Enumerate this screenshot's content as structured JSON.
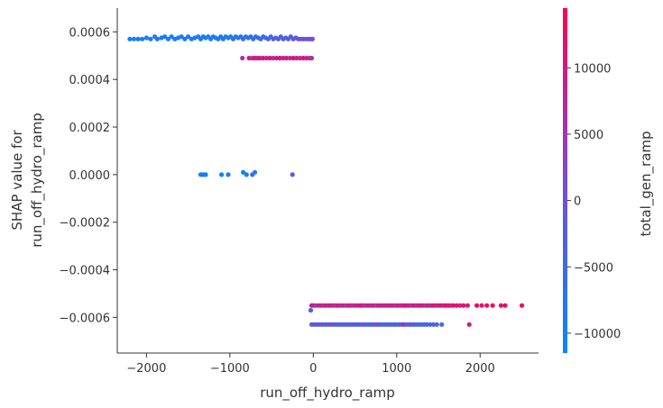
{
  "chart_data": {
    "type": "scatter",
    "xlabel": "run_off_hydro_ramp",
    "ylabel_lines": [
      "SHAP value for",
      "run_off_hydro_ramp"
    ],
    "xlim": [
      -2350,
      2700
    ],
    "ylim": [
      -0.00075,
      0.0007
    ],
    "x_ticks": [
      -2000,
      -1000,
      0,
      1000,
      2000
    ],
    "x_tick_labels": [
      "−2000",
      "−1000",
      "0",
      "1000",
      "2000"
    ],
    "y_ticks": [
      0.0006,
      0.0004,
      0.0002,
      0.0,
      -0.0002,
      -0.0004,
      -0.0006
    ],
    "y_tick_labels": [
      "0.0006",
      "0.0004",
      "0.0002",
      "0.0000",
      "−0.0002",
      "−0.0004",
      "−0.0006"
    ],
    "colorbar": {
      "label": "total_gen_ramp",
      "range": [
        -11500,
        14500
      ],
      "ticks": [
        10000,
        5000,
        0,
        -5000,
        -10000
      ],
      "tick_labels": [
        "10000",
        "5000",
        "0",
        "−5000",
        "−10000"
      ],
      "colors": [
        "#008afb",
        "#7b4bd1",
        "#ff0052"
      ]
    },
    "points": [
      [
        -2200,
        0.00057,
        -9500
      ],
      [
        -2150,
        0.00057,
        -10000
      ],
      [
        -2100,
        0.00057,
        -9000
      ],
      [
        -2050,
        0.00057,
        -9800
      ],
      [
        -2000,
        0.000575,
        -9200
      ],
      [
        -1950,
        0.00057,
        -9500
      ],
      [
        -1900,
        0.00058,
        -9000
      ],
      [
        -1870,
        0.00057,
        -8500
      ],
      [
        -1820,
        0.000575,
        -9700
      ],
      [
        -1780,
        0.00058,
        -8800
      ],
      [
        -1740,
        0.00057,
        -9200
      ],
      [
        -1700,
        0.00058,
        -9600
      ],
      [
        -1660,
        0.00057,
        -8000
      ],
      [
        -1620,
        0.000575,
        -9300
      ],
      [
        -1580,
        0.00058,
        -8700
      ],
      [
        -1540,
        0.00057,
        -9100
      ],
      [
        -1500,
        0.00058,
        -7500
      ],
      [
        -1460,
        0.00057,
        -9000
      ],
      [
        -1420,
        0.000575,
        -8600
      ],
      [
        -1380,
        0.00058,
        -9400
      ],
      [
        -1350,
        0.00057,
        -8200
      ],
      [
        -1320,
        0.00058,
        -9000
      ],
      [
        -1290,
        0.000575,
        -8800
      ],
      [
        -1260,
        0.00058,
        -9500
      ],
      [
        -1230,
        0.00057,
        -8400
      ],
      [
        -1200,
        0.00058,
        -7800
      ],
      [
        -1170,
        0.000575,
        -9100
      ],
      [
        -1140,
        0.00057,
        -8500
      ],
      [
        -1110,
        0.00058,
        -7000
      ],
      [
        -1080,
        0.00057,
        -8700
      ],
      [
        -1050,
        0.00058,
        -9200
      ],
      [
        -1020,
        0.000575,
        -6500
      ],
      [
        -990,
        0.00058,
        -8800
      ],
      [
        -960,
        0.00057,
        -6000
      ],
      [
        -930,
        0.00058,
        -8500
      ],
      [
        -900,
        0.000575,
        -5500
      ],
      [
        -870,
        0.00058,
        -7800
      ],
      [
        -840,
        0.00057,
        -5000
      ],
      [
        -810,
        0.00058,
        -8000
      ],
      [
        -780,
        0.000575,
        -4500
      ],
      [
        -750,
        0.00058,
        -7500
      ],
      [
        -720,
        0.00057,
        -4000
      ],
      [
        -690,
        0.00058,
        -7000
      ],
      [
        -660,
        0.000575,
        -3500
      ],
      [
        -630,
        0.00057,
        -6800
      ],
      [
        -600,
        0.00058,
        -3000
      ],
      [
        -570,
        0.000575,
        -6000
      ],
      [
        -540,
        0.00057,
        -2500
      ],
      [
        -510,
        0.00058,
        -5500
      ],
      [
        -480,
        0.00057,
        -2000
      ],
      [
        -450,
        0.000575,
        -5000
      ],
      [
        -420,
        0.00057,
        -1500
      ],
      [
        -390,
        0.00058,
        -4500
      ],
      [
        -360,
        0.00057,
        -1000
      ],
      [
        -330,
        0.000575,
        -4000
      ],
      [
        -300,
        0.00057,
        -500
      ],
      [
        -270,
        0.00058,
        -3500
      ],
      [
        -240,
        0.00057,
        0
      ],
      [
        -210,
        0.000575,
        -3000
      ],
      [
        -180,
        0.00057,
        500
      ],
      [
        -150,
        0.00057,
        -2500
      ],
      [
        -120,
        0.00057,
        1000
      ],
      [
        -90,
        0.00057,
        -2000
      ],
      [
        -60,
        0.00057,
        1500
      ],
      [
        -30,
        0.00057,
        -1500
      ],
      [
        -10,
        0.00057,
        2000
      ],
      [
        -850,
        0.00049,
        6000
      ],
      [
        -770,
        0.00049,
        9000
      ],
      [
        -730,
        0.00049,
        8000
      ],
      [
        -700,
        0.00049,
        10000
      ],
      [
        -670,
        0.00049,
        7500
      ],
      [
        -640,
        0.00049,
        9500
      ],
      [
        -600,
        0.00049,
        11000
      ],
      [
        -560,
        0.00049,
        8500
      ],
      [
        -520,
        0.00049,
        10500
      ],
      [
        -480,
        0.00049,
        7000
      ],
      [
        -440,
        0.00049,
        9800
      ],
      [
        -400,
        0.00049,
        11500
      ],
      [
        -360,
        0.00049,
        8000
      ],
      [
        -320,
        0.00049,
        10000
      ],
      [
        -280,
        0.00049,
        6500
      ],
      [
        -240,
        0.00049,
        12000
      ],
      [
        -200,
        0.00049,
        9000
      ],
      [
        -160,
        0.00049,
        7500
      ],
      [
        -120,
        0.00049,
        11000
      ],
      [
        -80,
        0.00049,
        8500
      ],
      [
        -40,
        0.00049,
        10500
      ],
      [
        -20,
        0.00049,
        6000
      ],
      [
        -1350,
        0.0,
        -9000
      ],
      [
        -1320,
        0.0,
        -8500
      ],
      [
        -1290,
        0.0,
        -9500
      ],
      [
        -1100,
        0.0,
        -10000
      ],
      [
        -1020,
        0.0,
        -9200
      ],
      [
        -840,
        1e-05,
        -9800
      ],
      [
        -800,
        0.0,
        -9000
      ],
      [
        -730,
        0.0,
        -3000
      ],
      [
        -700,
        1e-05,
        -9500
      ],
      [
        -250,
        0.0,
        -2500
      ],
      [
        -30,
        -0.00057,
        -3000
      ],
      [
        -20,
        -0.00055,
        7000
      ],
      [
        0,
        -0.00055,
        9000
      ],
      [
        30,
        -0.00055,
        5000
      ],
      [
        60,
        -0.00055,
        8000
      ],
      [
        90,
        -0.00055,
        10000
      ],
      [
        120,
        -0.00055,
        6000
      ],
      [
        150,
        -0.00055,
        9500
      ],
      [
        180,
        -0.00055,
        7500
      ],
      [
        210,
        -0.00055,
        11000
      ],
      [
        240,
        -0.00055,
        8500
      ],
      [
        270,
        -0.00055,
        6500
      ],
      [
        300,
        -0.00055,
        10500
      ],
      [
        330,
        -0.00055,
        7000
      ],
      [
        360,
        -0.00055,
        9000
      ],
      [
        390,
        -0.00055,
        5500
      ],
      [
        420,
        -0.00055,
        8000
      ],
      [
        450,
        -0.00055,
        10000
      ],
      [
        480,
        -0.00055,
        6000
      ],
      [
        510,
        -0.00055,
        9000
      ],
      [
        540,
        -0.00055,
        7500
      ],
      [
        570,
        -0.00055,
        11500
      ],
      [
        600,
        -0.00055,
        8500
      ],
      [
        630,
        -0.00055,
        6500
      ],
      [
        660,
        -0.00055,
        10000
      ],
      [
        690,
        -0.00055,
        7000
      ],
      [
        720,
        -0.00055,
        9500
      ],
      [
        750,
        -0.00055,
        5000
      ],
      [
        780,
        -0.00055,
        8500
      ],
      [
        810,
        -0.00055,
        10500
      ],
      [
        840,
        -0.00055,
        6000
      ],
      [
        870,
        -0.00055,
        9000
      ],
      [
        900,
        -0.00055,
        7500
      ],
      [
        930,
        -0.00055,
        11000
      ],
      [
        960,
        -0.00055,
        8000
      ],
      [
        990,
        -0.00055,
        6500
      ],
      [
        1020,
        -0.00055,
        10000
      ],
      [
        1050,
        -0.00055,
        7000
      ],
      [
        1080,
        -0.00055,
        9500
      ],
      [
        1110,
        -0.00055,
        12000
      ],
      [
        1140,
        -0.00055,
        8500
      ],
      [
        1170,
        -0.00055,
        6000
      ],
      [
        1200,
        -0.00055,
        10500
      ],
      [
        1230,
        -0.00055,
        7500
      ],
      [
        1260,
        -0.00055,
        9000
      ],
      [
        1290,
        -0.00055,
        11500
      ],
      [
        1320,
        -0.00055,
        8000
      ],
      [
        1350,
        -0.00055,
        6500
      ],
      [
        1380,
        -0.00055,
        10000
      ],
      [
        1410,
        -0.00055,
        7000
      ],
      [
        1440,
        -0.00055,
        12500
      ],
      [
        1470,
        -0.00055,
        9000
      ],
      [
        1500,
        -0.00055,
        8000
      ],
      [
        1530,
        -0.00055,
        11000
      ],
      [
        1560,
        -0.00055,
        9500
      ],
      [
        1590,
        -0.00055,
        12000
      ],
      [
        1620,
        -0.00055,
        10000
      ],
      [
        1650,
        -0.00055,
        8500
      ],
      [
        1680,
        -0.00055,
        11500
      ],
      [
        1720,
        -0.00055,
        13000
      ],
      [
        1760,
        -0.00055,
        9000
      ],
      [
        1800,
        -0.00055,
        12000
      ],
      [
        1850,
        -0.00055,
        10500
      ],
      [
        1960,
        -0.00055,
        13500
      ],
      [
        2020,
        -0.00055,
        11000
      ],
      [
        2080,
        -0.00055,
        12500
      ],
      [
        2150,
        -0.00055,
        14000
      ],
      [
        2250,
        -0.00055,
        12000
      ],
      [
        2300,
        -0.00055,
        13500
      ],
      [
        2500,
        -0.00055,
        14000
      ],
      [
        -20,
        -0.00063,
        -2000
      ],
      [
        10,
        -0.00063,
        -4000
      ],
      [
        40,
        -0.00063,
        0
      ],
      [
        70,
        -0.00063,
        -3000
      ],
      [
        100,
        -0.00063,
        2000
      ],
      [
        130,
        -0.00063,
        -5000
      ],
      [
        160,
        -0.00063,
        -1000
      ],
      [
        190,
        -0.00063,
        -3500
      ],
      [
        220,
        -0.00063,
        1500
      ],
      [
        250,
        -0.00063,
        -4500
      ],
      [
        280,
        -0.00063,
        -2000
      ],
      [
        310,
        -0.00063,
        -6000
      ],
      [
        340,
        -0.00063,
        500
      ],
      [
        370,
        -0.00063,
        -3000
      ],
      [
        400,
        -0.00063,
        -5500
      ],
      [
        430,
        -0.00063,
        -1500
      ],
      [
        460,
        -0.00063,
        -4000
      ],
      [
        490,
        -0.00063,
        1000
      ],
      [
        520,
        -0.00063,
        -6500
      ],
      [
        550,
        -0.00063,
        -2500
      ],
      [
        580,
        -0.00063,
        -5000
      ],
      [
        610,
        -0.00063,
        0
      ],
      [
        640,
        -0.00063,
        -3500
      ],
      [
        670,
        -0.00063,
        -7000
      ],
      [
        700,
        -0.00063,
        -1000
      ],
      [
        730,
        -0.00063,
        -4500
      ],
      [
        760,
        -0.00063,
        2500
      ],
      [
        790,
        -0.00063,
        -6000
      ],
      [
        820,
        -0.00063,
        -2000
      ],
      [
        850,
        -0.00063,
        -5000
      ],
      [
        880,
        -0.00063,
        -500
      ],
      [
        910,
        -0.00063,
        -3500
      ],
      [
        940,
        -0.00063,
        -7500
      ],
      [
        970,
        -0.00063,
        1500
      ],
      [
        1000,
        -0.00063,
        -4000
      ],
      [
        1030,
        -0.00063,
        -6500
      ],
      [
        1060,
        -0.00063,
        -1500
      ],
      [
        1090,
        -0.00063,
        6000
      ],
      [
        1120,
        -0.00063,
        -3000
      ],
      [
        1150,
        -0.00063,
        -5500
      ],
      [
        1180,
        -0.00063,
        500
      ],
      [
        1210,
        -0.00063,
        -4500
      ],
      [
        1240,
        -0.00063,
        -2500
      ],
      [
        1270,
        -0.00063,
        -7000
      ],
      [
        1300,
        -0.00063,
        -1000
      ],
      [
        1330,
        -0.00063,
        -5000
      ],
      [
        1360,
        -0.00063,
        -3000
      ],
      [
        1400,
        -0.00063,
        -6000
      ],
      [
        1440,
        -0.00063,
        -2000
      ],
      [
        1480,
        -0.00063,
        -4000
      ],
      [
        1540,
        -0.00063,
        -5000
      ],
      [
        1870,
        -0.00063,
        9000
      ]
    ]
  }
}
